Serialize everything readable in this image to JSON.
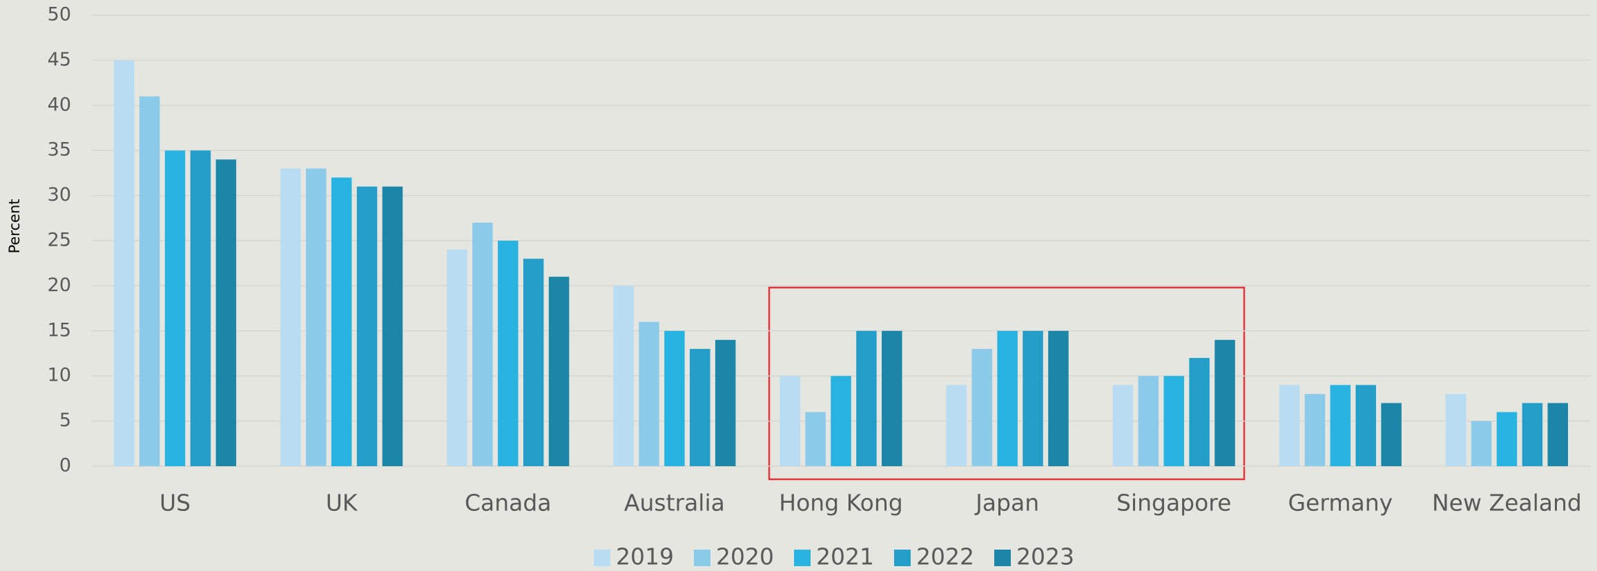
{
  "chart_data": {
    "type": "bar",
    "ylabel": "Percent",
    "categories": [
      "US",
      "UK",
      "Canada",
      "Australia",
      "Hong Kong",
      "Japan",
      "Singapore",
      "Germany",
      "New Zealand"
    ],
    "series": [
      {
        "name": "2019",
        "color": "#b8dcf1",
        "values": [
          45,
          33,
          24,
          20,
          10,
          9,
          9,
          9,
          8
        ]
      },
      {
        "name": "2020",
        "color": "#8ccaea",
        "values": [
          41,
          33,
          27,
          16,
          6,
          13,
          10,
          8,
          5
        ]
      },
      {
        "name": "2021",
        "color": "#29b3e1",
        "values": [
          35,
          32,
          25,
          15,
          10,
          15,
          10,
          9,
          6
        ]
      },
      {
        "name": "2022",
        "color": "#229ec9",
        "values": [
          35,
          31,
          23,
          13,
          15,
          15,
          12,
          9,
          7
        ]
      },
      {
        "name": "2023",
        "color": "#1b86a8",
        "values": [
          34,
          31,
          21,
          14,
          15,
          15,
          14,
          7,
          7
        ]
      }
    ],
    "ylim": [
      0,
      50
    ],
    "yticks": [
      0,
      5,
      10,
      15,
      20,
      25,
      30,
      35,
      40,
      45,
      50
    ],
    "grid": true,
    "legend": "bottom"
  }
}
